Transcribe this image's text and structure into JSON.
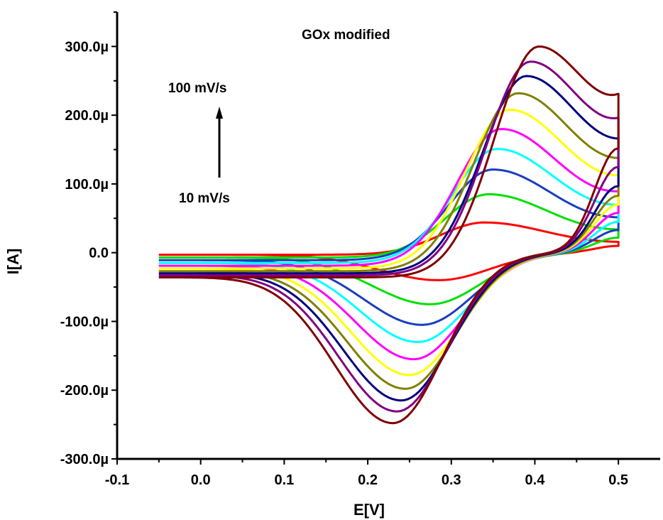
{
  "chart_data": {
    "type": "line",
    "title": "GOx modified",
    "xlabel": "E[V]",
    "ylabel": "I[A]",
    "xlim": [
      -0.1,
      0.55
    ],
    "ylim": [
      -300,
      350
    ],
    "y_unit": "µA",
    "x_ticks": [
      "-0.1",
      "0.0",
      "0.1",
      "0.2",
      "0.3",
      "0.4",
      "0.5"
    ],
    "x_tick_values": [
      -0.1,
      0.0,
      0.1,
      0.2,
      0.3,
      0.4,
      0.5
    ],
    "y_ticks": [
      "300.0µ",
      "200.0µ",
      "100.0µ",
      "0.0",
      "-100.0µ",
      "-200.0µ",
      "-300.0µ"
    ],
    "y_tick_values": [
      300,
      200,
      100,
      0,
      -100,
      -200,
      -300
    ],
    "annotations": {
      "top": "100 mV/s",
      "bottom": "10 mV/s"
    },
    "grid": false,
    "legend": "none",
    "series": [
      {
        "color": "#ff0000",
        "anodic_peak": [
          0.34,
          44
        ],
        "cathodic_peak": [
          0.285,
          -40
        ],
        "start": [
          -0.05,
          -3
        ],
        "end": [
          0.5,
          10
        ]
      },
      {
        "color": "#00e000",
        "anodic_peak": [
          0.345,
          85
        ],
        "cathodic_peak": [
          0.275,
          -75
        ],
        "start": [
          -0.05,
          -7
        ],
        "end": [
          0.5,
          22
        ]
      },
      {
        "color": "#1a3dbf",
        "anodic_peak": [
          0.35,
          121
        ],
        "cathodic_peak": [
          0.265,
          -105
        ],
        "start": [
          -0.05,
          -11
        ],
        "end": [
          0.5,
          33
        ]
      },
      {
        "color": "#00ffff",
        "anodic_peak": [
          0.355,
          151
        ],
        "cathodic_peak": [
          0.26,
          -130
        ],
        "start": [
          -0.05,
          -15
        ],
        "end": [
          0.5,
          45
        ]
      },
      {
        "color": "#ff00ff",
        "anodic_peak": [
          0.36,
          180
        ],
        "cathodic_peak": [
          0.255,
          -155
        ],
        "start": [
          -0.05,
          -19
        ],
        "end": [
          0.5,
          58
        ]
      },
      {
        "color": "#ffff00",
        "anodic_peak": [
          0.37,
          208
        ],
        "cathodic_peak": [
          0.25,
          -178
        ],
        "start": [
          -0.05,
          -23
        ],
        "end": [
          0.5,
          70
        ]
      },
      {
        "color": "#808000",
        "anodic_peak": [
          0.38,
          232
        ],
        "cathodic_peak": [
          0.245,
          -198
        ],
        "start": [
          -0.05,
          -27
        ],
        "end": [
          0.5,
          83
        ]
      },
      {
        "color": "#000080",
        "anodic_peak": [
          0.39,
          257
        ],
        "cathodic_peak": [
          0.24,
          -215
        ],
        "start": [
          -0.05,
          -30
        ],
        "end": [
          0.5,
          97
        ]
      },
      {
        "color": "#800080",
        "anodic_peak": [
          0.395,
          278
        ],
        "cathodic_peak": [
          0.235,
          -231
        ],
        "start": [
          -0.05,
          -33
        ],
        "end": [
          0.5,
          125
        ]
      },
      {
        "color": "#800000",
        "anodic_peak": [
          0.405,
          300
        ],
        "cathodic_peak": [
          0.23,
          -248
        ],
        "start": [
          -0.05,
          -36
        ],
        "end": [
          0.5,
          152
        ]
      }
    ]
  }
}
